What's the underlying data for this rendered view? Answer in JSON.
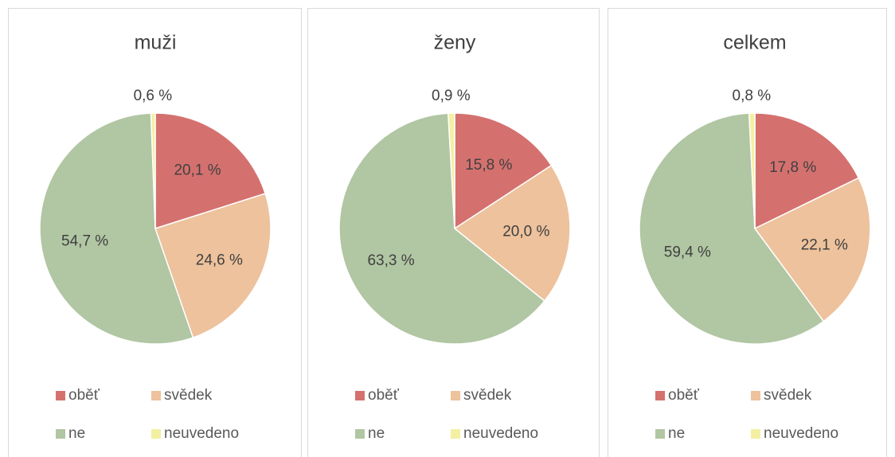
{
  "chart_data": [
    {
      "type": "pie",
      "title": "muži",
      "categories": [
        "oběť",
        "svědek",
        "ne",
        "neuvedeno"
      ],
      "values": [
        20.1,
        24.6,
        54.7,
        0.6
      ],
      "value_labels": [
        "20,1 %",
        "24,6 %",
        "54,7 %",
        "0,6 %"
      ],
      "colors": [
        "#d4716f",
        "#edc29c",
        "#b1c6a3",
        "#f3f0a3"
      ]
    },
    {
      "type": "pie",
      "title": "ženy",
      "categories": [
        "oběť",
        "svědek",
        "ne",
        "neuvedeno"
      ],
      "values": [
        15.8,
        20.0,
        63.3,
        0.9
      ],
      "value_labels": [
        "15,8 %",
        "20,0 %",
        "63,3 %",
        "0,9 %"
      ],
      "colors": [
        "#d4716f",
        "#edc29c",
        "#b1c6a3",
        "#f3f0a3"
      ]
    },
    {
      "type": "pie",
      "title": "celkem",
      "categories": [
        "oběť",
        "svědek",
        "ne",
        "neuvedeno"
      ],
      "values": [
        17.8,
        22.1,
        59.4,
        0.8
      ],
      "value_labels": [
        "17,8 %",
        "22,1 %",
        "59,4 %",
        "0,8 %"
      ],
      "colors": [
        "#d4716f",
        "#edc29c",
        "#b1c6a3",
        "#f3f0a3"
      ]
    }
  ]
}
